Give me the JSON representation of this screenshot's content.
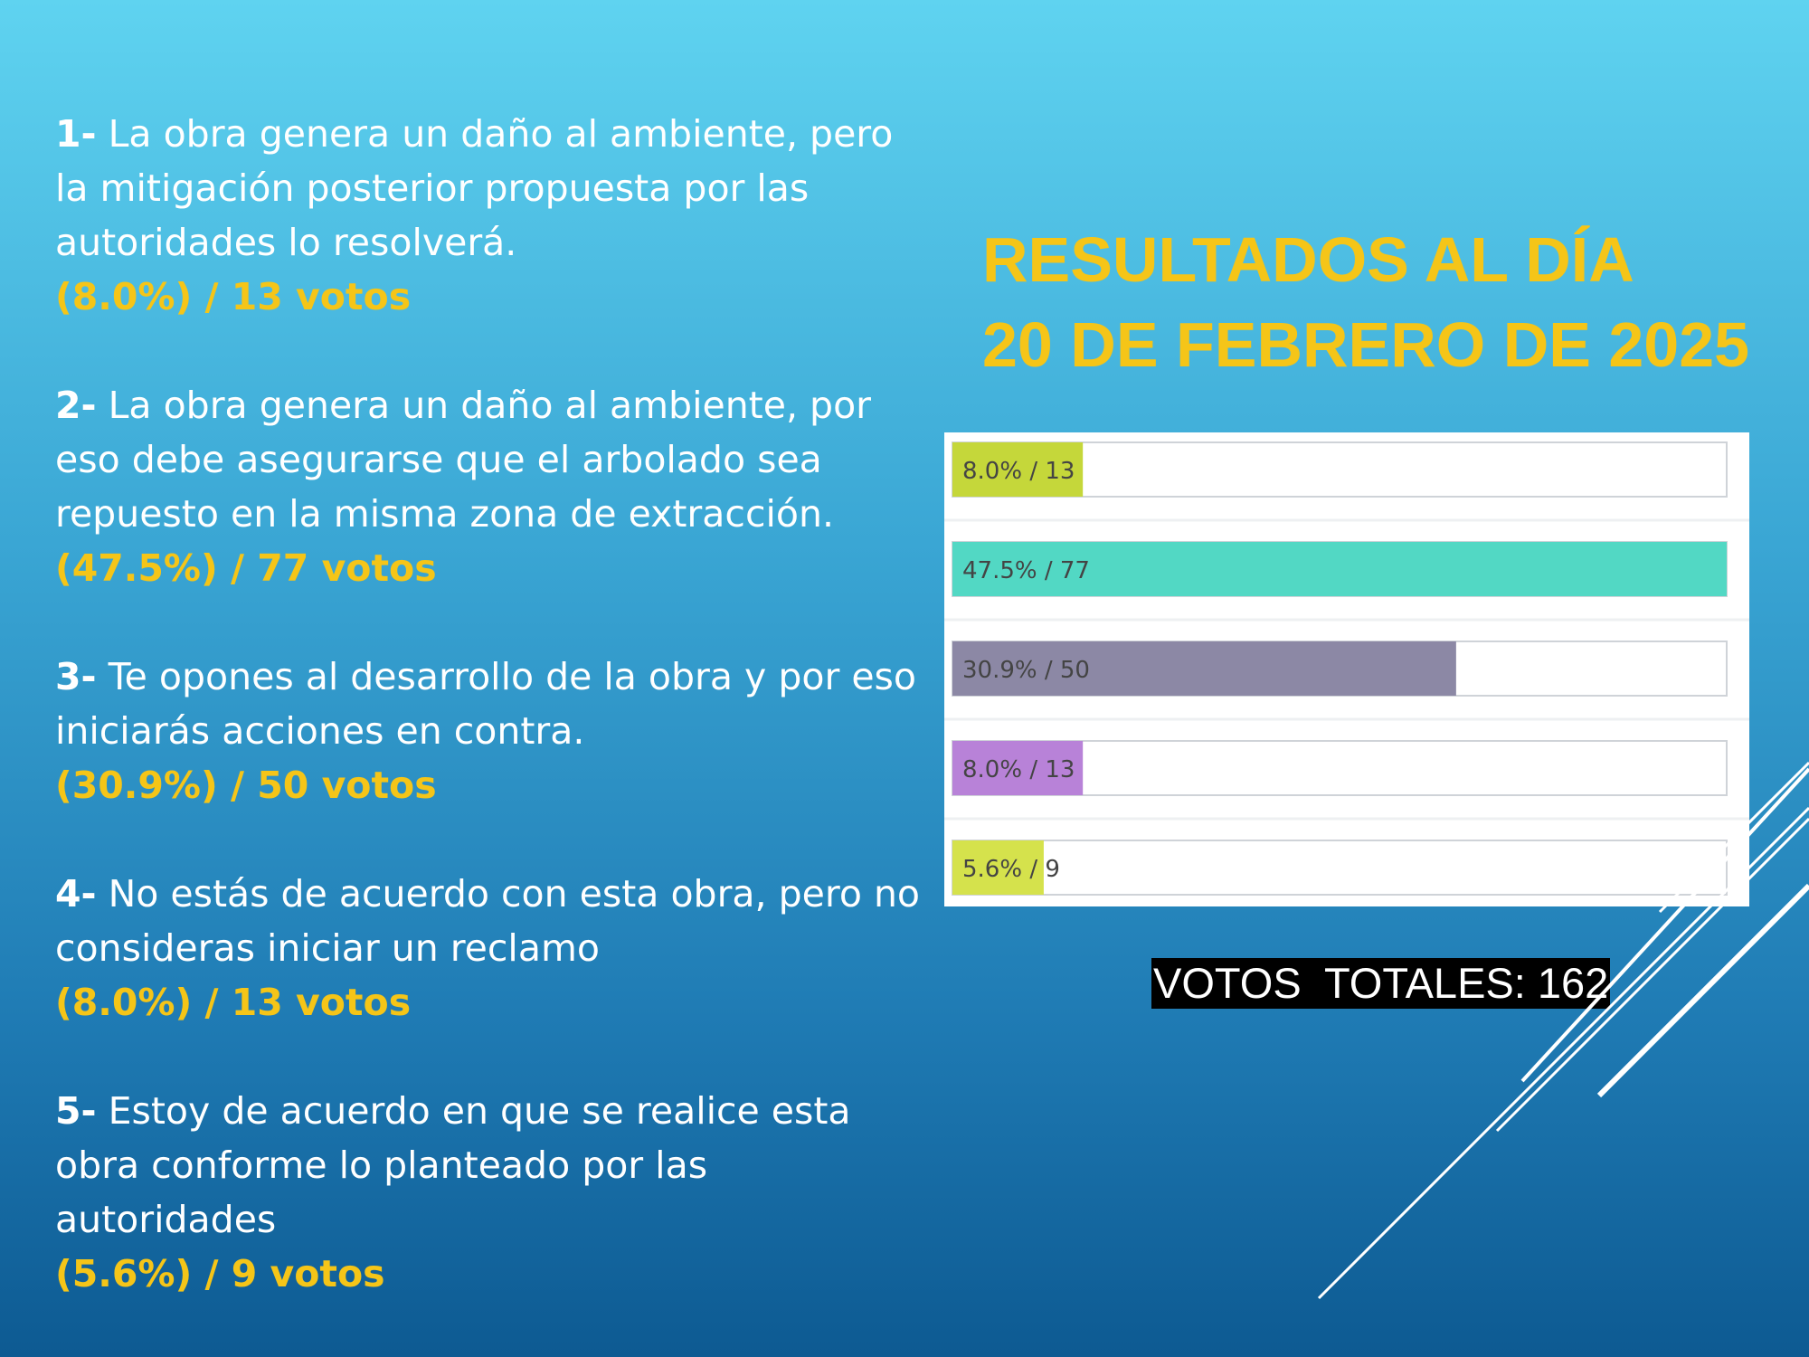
{
  "questions": [
    {
      "number": "1-",
      "text": "La obra genera un daño al ambiente, pero la mitigación posterior propuesta por las autoridades lo resolverá.",
      "result": "(8.0%) / 13 votos"
    },
    {
      "number": "2-",
      "text": "La obra genera un daño al ambiente, por eso debe asegurarse que el arbolado sea repuesto en la misma zona de extracción.",
      "result": "(47.5%) / 77 votos"
    },
    {
      "number": "3-",
      "text": "Te opones al desarrollo de la obra y por eso iniciarás acciones en contra.",
      "result": "(30.9%) / 50 votos"
    },
    {
      "number": "4-",
      "text": "No estás de acuerdo con esta obra, pero no consideras iniciar un reclamo",
      "result": "(8.0%) / 13  votos"
    },
    {
      "number": "5-",
      "text": "Estoy de acuerdo en que se realice esta obra conforme lo planteado por las autoridades",
      "result": "(5.6%) / 9 votos"
    }
  ],
  "title_line1": "RESULTADOS AL DÍA",
  "title_line2": "20 DE FEBRERO DE 2025",
  "total_votes_label": "VOTOS  TOTALES: 162",
  "colors": {
    "accent_yellow": "#f5c518",
    "bar_track": "#ffffff",
    "bar_border": "#cfd3d8"
  },
  "chart_data": {
    "type": "bar",
    "orientation": "horizontal",
    "categories": [
      "1",
      "2",
      "3",
      "4",
      "5"
    ],
    "values": [
      8.0,
      47.5,
      30.9,
      8.0,
      5.6
    ],
    "votes": [
      13,
      77,
      50,
      13,
      9
    ],
    "labels": [
      "8.0% / 13",
      "47.5% / 77",
      "30.9% / 50",
      "8.0% / 13",
      "5.6% / 9"
    ],
    "colors": [
      "#c5d73a",
      "#52d8c4",
      "#8c88a5",
      "#b882d8",
      "#d5e24c"
    ],
    "max_value": 47.5,
    "title": "",
    "xlabel": "",
    "ylabel": "",
    "grid": false,
    "legend": "none"
  }
}
